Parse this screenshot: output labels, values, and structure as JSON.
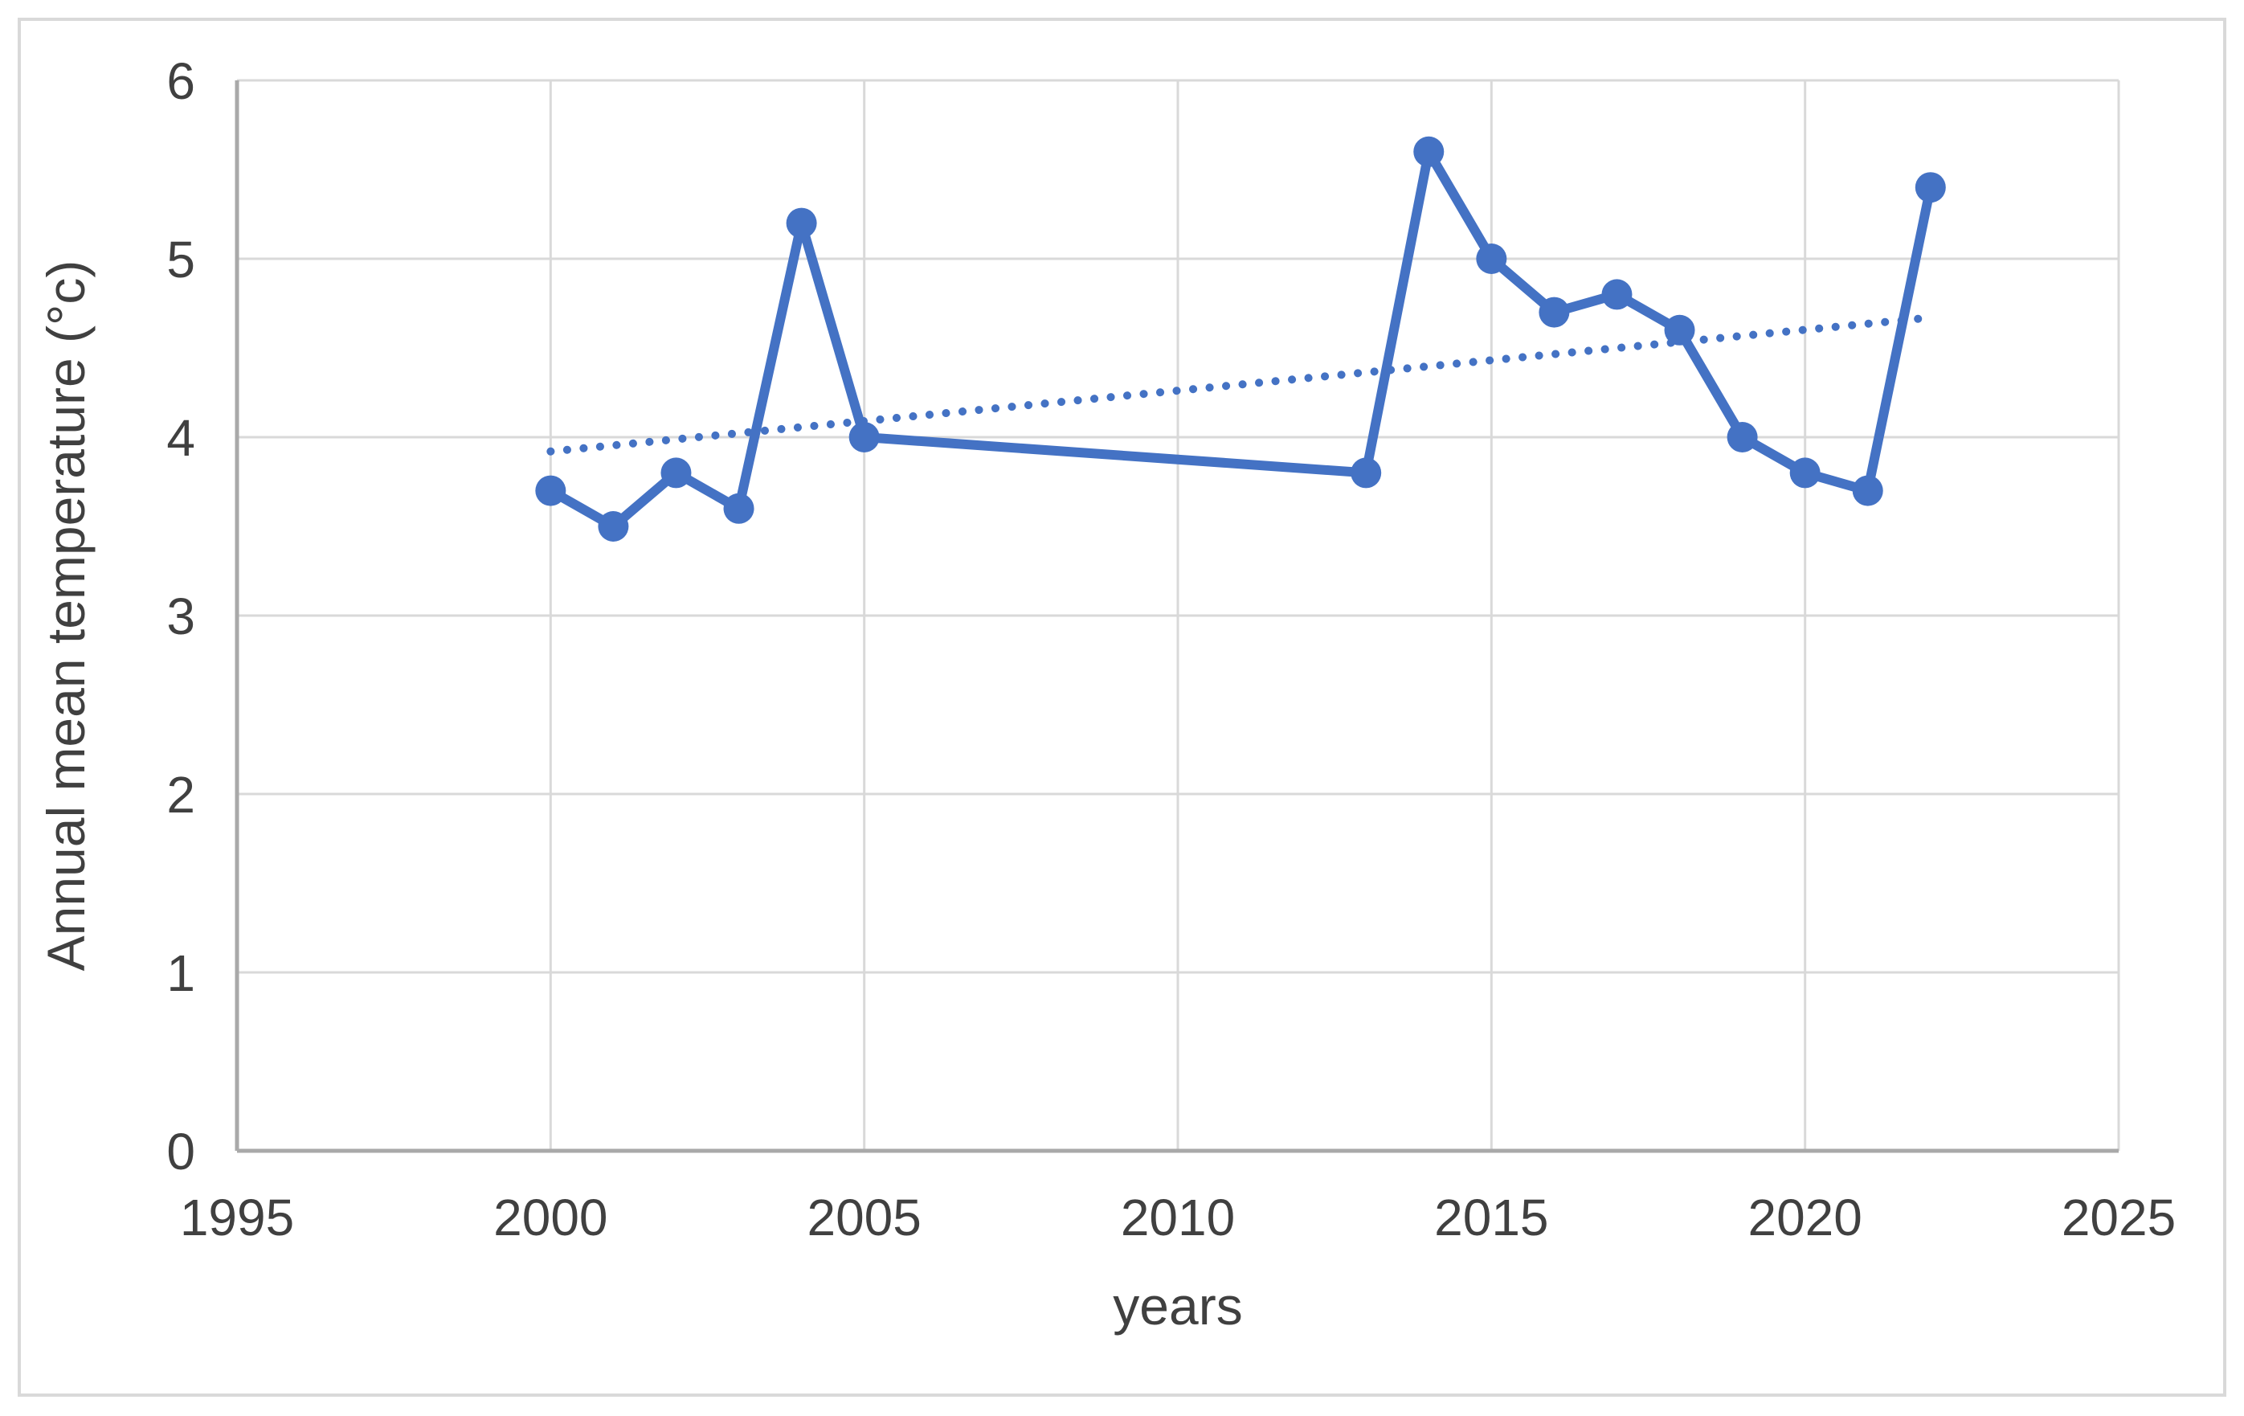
{
  "figure": {
    "background": "#ffffff",
    "border_color": "#d9d9d9"
  },
  "chart_data": {
    "type": "line",
    "title": "",
    "xlabel": "years",
    "ylabel": "Annual mean temperature (°c)",
    "xlim": [
      1995,
      2025
    ],
    "ylim": [
      0,
      6
    ],
    "x_ticks": [
      1995,
      2000,
      2005,
      2010,
      2015,
      2020,
      2025
    ],
    "y_ticks": [
      0,
      1,
      2,
      3,
      4,
      5,
      6
    ],
    "grid": true,
    "legend": "none",
    "colors": {
      "series": "#4472c4",
      "gridline": "#d9d9d9",
      "axis_line": "#a9a9a9",
      "text": "#404040"
    },
    "x": [
      2000,
      2001,
      2002,
      2003,
      2004,
      2005,
      2013,
      2014,
      2015,
      2016,
      2017,
      2018,
      2019,
      2020,
      2021,
      2022
    ],
    "series": [
      {
        "name": "Annual mean temperature",
        "values": [
          3.7,
          3.5,
          3.8,
          3.6,
          5.2,
          4.0,
          3.8,
          5.6,
          5.0,
          4.7,
          4.8,
          4.6,
          4.0,
          3.8,
          3.7,
          5.4
        ],
        "color": "#4472c4",
        "marker": "circle",
        "line_style": "solid"
      }
    ],
    "trendline": {
      "type": "linear",
      "line_style": "dotted",
      "color": "#4472c4",
      "x_start": 2000,
      "y_start": 3.92,
      "x_end": 2022,
      "y_end": 4.67
    }
  }
}
